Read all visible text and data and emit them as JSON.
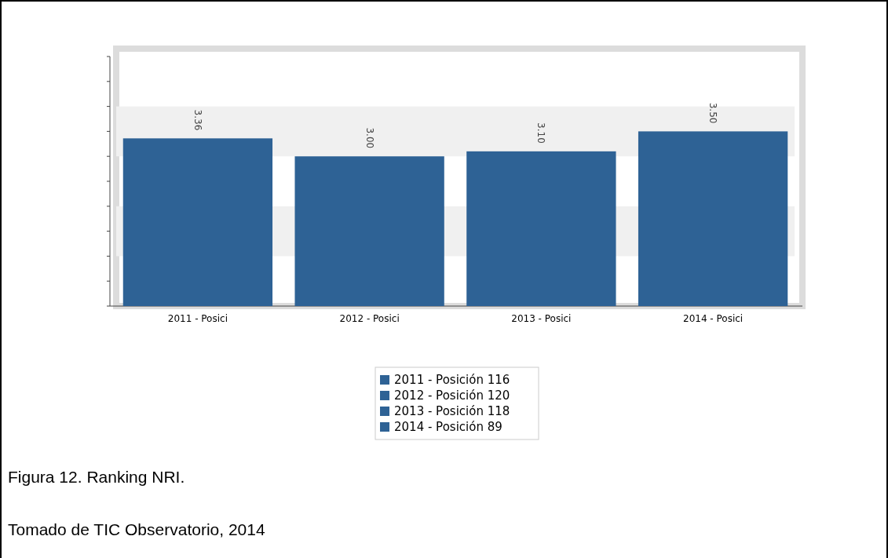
{
  "chart_data": {
    "type": "bar",
    "categories": [
      "2011 - Posici",
      "2012 - Posici",
      "2013 - Posici",
      "2014 - Posici"
    ],
    "series": [
      {
        "name": "2011 - Posición 116",
        "color": "#2e6295",
        "values": [
          3.36,
          null,
          null,
          null
        ],
        "value_labels": [
          "3.36",
          null,
          null,
          null
        ]
      },
      {
        "name": "2012 - Posición 120",
        "color": "#2e6295",
        "values": [
          null,
          3.0,
          null,
          null
        ],
        "value_labels": [
          null,
          "3.00",
          null,
          null
        ]
      },
      {
        "name": "2013 - Posición 118",
        "color": "#2e6295",
        "values": [
          null,
          null,
          3.1,
          null
        ],
        "value_labels": [
          null,
          null,
          "3.10",
          null
        ]
      },
      {
        "name": "2014 - Posición 89",
        "color": "#2e6295",
        "values": [
          null,
          null,
          null,
          3.5
        ],
        "value_labels": [
          null,
          null,
          null,
          "3.50"
        ]
      }
    ],
    "ylim": [
      0,
      5
    ],
    "yticks": [
      {
        "value": 0,
        "label": null
      },
      {
        "value": 0.5,
        "label": null
      },
      {
        "value": 1,
        "label": null
      },
      {
        "value": 1.5,
        "label": null
      },
      {
        "value": 2,
        "label": null
      },
      {
        "value": 2.5,
        "label": null
      },
      {
        "value": 3,
        "label": null
      },
      {
        "value": 3.5,
        "label": null
      },
      {
        "value": 4,
        "label": null
      },
      {
        "value": 4.5,
        "label": null
      },
      {
        "value": 5,
        "label": null
      }
    ],
    "grid": true,
    "legend": "bottom",
    "tick_labels": "x",
    "annotations": [
      "Figura 12. Ranking NRI.",
      "Tomado de TIC Observatorio, 2014"
    ]
  }
}
